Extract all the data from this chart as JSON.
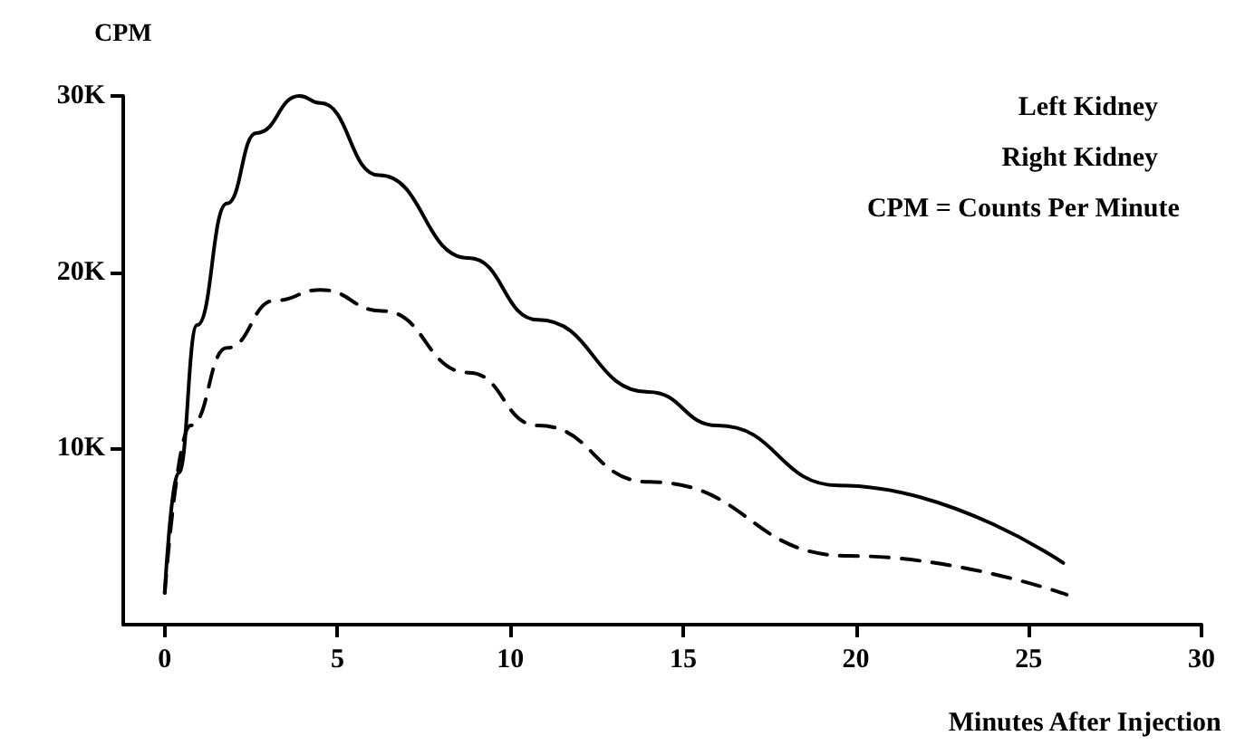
{
  "chart_data": {
    "type": "line",
    "xlabel": "Minutes After Injection",
    "ylabel": "CPM",
    "annotations": [
      "Left Kidney",
      "Right Kidney",
      "CPM = Counts Per Minute"
    ],
    "xlim": [
      -1.2,
      30
    ],
    "xticks": [
      0,
      5,
      10,
      15,
      20,
      25,
      30
    ],
    "ylim": [
      0,
      30000
    ],
    "yticks": [
      {
        "value": 10000,
        "label": "10K"
      },
      {
        "value": 20000,
        "label": "20K"
      },
      {
        "value": 30000,
        "label": "30K"
      }
    ],
    "grid": false,
    "marker": "none",
    "series": [
      {
        "color": "#000000",
        "line_style": "solid",
        "x": [
          0,
          0.4,
          0.94,
          1.8,
          2.65,
          3.9,
          4.5,
          6.2,
          8.8,
          10.8,
          14,
          16,
          19.5,
          26
        ],
        "values": [
          1800,
          8600,
          17000,
          23900,
          27900,
          30000,
          29600,
          25500,
          20800,
          17300,
          13200,
          11300,
          7900,
          3500
        ]
      },
      {
        "color": "#000000",
        "line_style": "dashed",
        "x": [
          0,
          0.75,
          1.8,
          3.2,
          4.5,
          6.3,
          8.8,
          10.8,
          14,
          19.8,
          26.1
        ],
        "values": [
          1800,
          11300,
          15700,
          18400,
          19000,
          17800,
          14300,
          11300,
          8100,
          3900,
          1700
        ]
      }
    ]
  }
}
